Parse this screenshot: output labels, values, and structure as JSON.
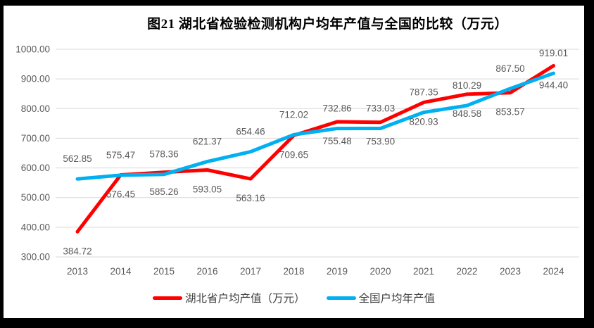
{
  "title": "图21 湖北省检验检测机构户均年产值与全国的比较（万元）",
  "chart_data": {
    "type": "line",
    "categories": [
      "2013",
      "2014",
      "2015",
      "2016",
      "2017",
      "2018",
      "2019",
      "2020",
      "2021",
      "2022",
      "2023",
      "2024"
    ],
    "series": [
      {
        "name": "湖北省户均产值（万元）",
        "color": "#FF0000",
        "label_position": "below",
        "values": [
          384.72,
          576.45,
          585.26,
          593.05,
          563.16,
          709.65,
          755.48,
          753.9,
          820.93,
          848.58,
          853.57,
          944.4
        ]
      },
      {
        "name": "全国户均年产值",
        "color": "#00B0F0",
        "label_position": "above",
        "values": [
          562.85,
          575.47,
          578.36,
          621.37,
          654.46,
          712.02,
          732.86,
          733.03,
          787.35,
          810.29,
          867.5,
          919.01
        ]
      }
    ],
    "ylim": [
      300,
      1000
    ],
    "y_step": 100,
    "tick_decimals": 2,
    "grid": "horizontal-only",
    "legend_position": "bottom",
    "axis_label_color": "#595959",
    "data_label_color": "#595959",
    "grid_color": "#D9D9D9"
  },
  "legend": {
    "items": [
      {
        "label": "湖北省户均产值（万元）",
        "color": "#FF0000"
      },
      {
        "label": "全国户均年产值",
        "color": "#00B0F0"
      }
    ]
  }
}
